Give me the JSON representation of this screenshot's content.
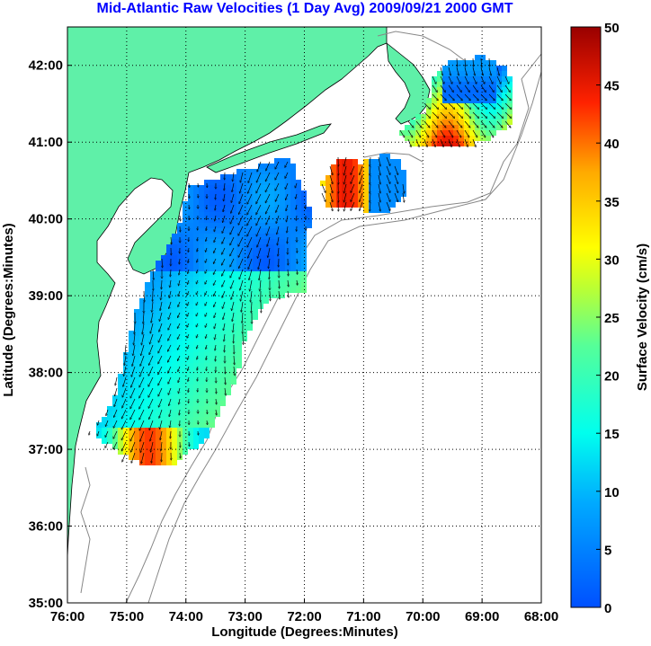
{
  "title": "Mid-Atlantic Raw Velocities (1 Day Avg) 2009/09/21 2000 GMT",
  "xlabel": "Longitude (Degrees:Minutes)",
  "ylabel": "Latitude (Degrees:Minutes)",
  "x_ticks": [
    {
      "value": 76,
      "label": "76:00"
    },
    {
      "value": 75,
      "label": "75:00"
    },
    {
      "value": 74,
      "label": "74:00"
    },
    {
      "value": 73,
      "label": "73:00"
    },
    {
      "value": 72,
      "label": "72:00"
    },
    {
      "value": 71,
      "label": "71:00"
    },
    {
      "value": 70,
      "label": "70:00"
    },
    {
      "value": 69,
      "label": "69:00"
    },
    {
      "value": 68,
      "label": "68:00"
    }
  ],
  "y_ticks": [
    {
      "value": 42,
      "label": "42:00"
    },
    {
      "value": 41,
      "label": "41:00"
    },
    {
      "value": 40,
      "label": "40:00"
    },
    {
      "value": 39,
      "label": "39:00"
    },
    {
      "value": 38,
      "label": "38:00"
    },
    {
      "value": 37,
      "label": "37:00"
    },
    {
      "value": 36,
      "label": "36:00"
    },
    {
      "value": 35,
      "label": "35:00"
    }
  ],
  "colorbar": {
    "label": "Surface Velocity (cm/s)",
    "min": 0,
    "max": 50,
    "ticks": [
      {
        "value": 50,
        "label": "50"
      },
      {
        "value": 45,
        "label": "45"
      },
      {
        "value": 40,
        "label": "40"
      },
      {
        "value": 35,
        "label": "35"
      },
      {
        "value": 30,
        "label": "30"
      },
      {
        "value": 25,
        "label": "25"
      },
      {
        "value": 20,
        "label": "20"
      },
      {
        "value": 15,
        "label": "15"
      },
      {
        "value": 10,
        "label": "10"
      },
      {
        "value": 5,
        "label": "5"
      },
      {
        "value": 0,
        "label": "0"
      }
    ]
  },
  "colors": {
    "title": "#0000ff",
    "land": "#5ff0a8",
    "bathymetry": "#888888",
    "grid": "#000000"
  },
  "map_extent": {
    "lon_min": -76,
    "lon_max": -68,
    "lat_min": 35,
    "lat_max": 42.5
  }
}
